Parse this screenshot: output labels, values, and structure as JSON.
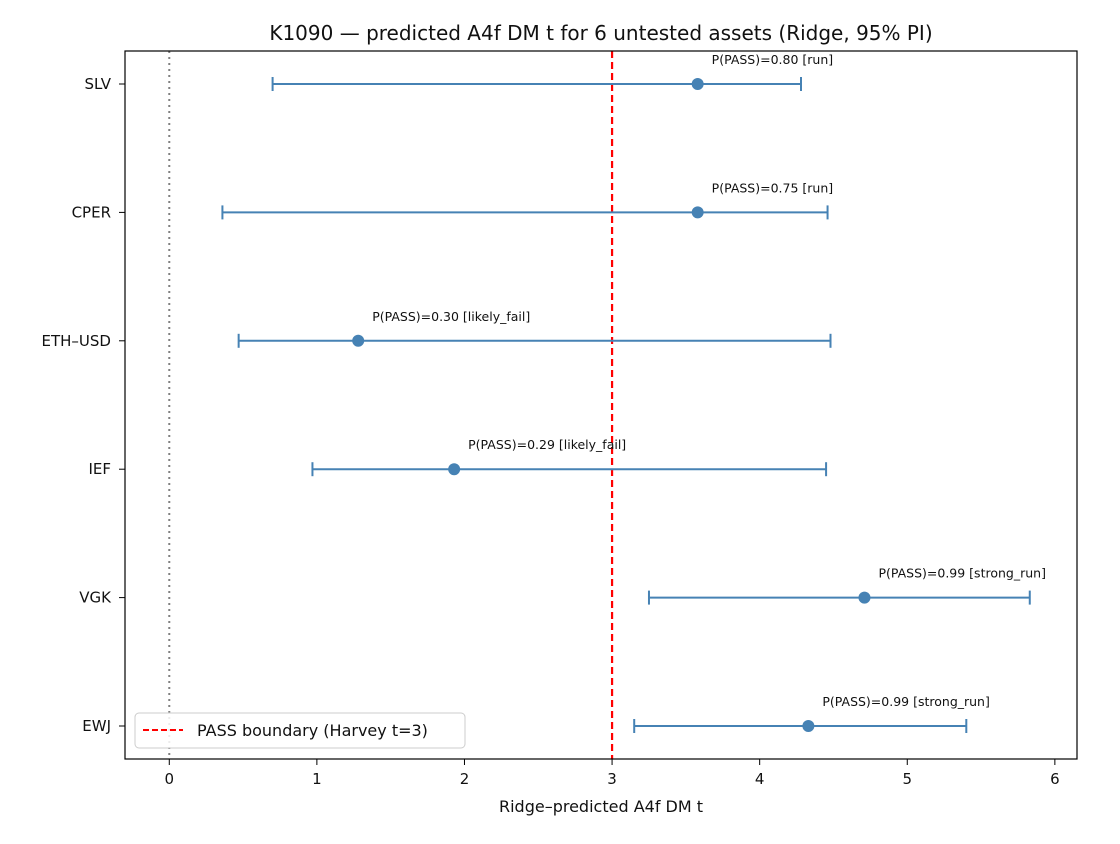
{
  "chart_data": {
    "type": "errorbar",
    "title": "K1090 — predicted A4f DM t for 6 untested assets (Ridge, 95% PI)",
    "xlabel": "Ridge–predicted A4f DM t",
    "ylabel": "",
    "xlim": [
      -0.3,
      6.15
    ],
    "xticks": [
      0,
      1,
      2,
      3,
      4,
      5,
      6
    ],
    "xtick_labels": [
      "0",
      "1",
      "2",
      "3",
      "4",
      "5",
      "6"
    ],
    "grid": false,
    "reference_lines": [
      {
        "x": 0,
        "style": "dotted",
        "color": "#808080"
      },
      {
        "x": 3,
        "style": "dashed",
        "color": "#ff0000",
        "label": "PASS boundary (Harvey t=3)"
      }
    ],
    "legend": {
      "position": "lower-left",
      "entries": [
        "PASS boundary (Harvey t=3)"
      ]
    },
    "point_color": "#4682b4",
    "assets": [
      {
        "name": "SLV",
        "estimate": 3.58,
        "lower": 0.7,
        "upper": 4.28,
        "annotation": "P(PASS)=0.80  [run]"
      },
      {
        "name": "CPER",
        "estimate": 3.58,
        "lower": 0.36,
        "upper": 4.46,
        "annotation": "P(PASS)=0.75  [run]"
      },
      {
        "name": "ETH–USD",
        "estimate": 1.28,
        "lower": 0.47,
        "upper": 4.48,
        "annotation": "P(PASS)=0.30  [likely_fail]"
      },
      {
        "name": "IEF",
        "estimate": 1.93,
        "lower": 0.97,
        "upper": 4.45,
        "annotation": "P(PASS)=0.29  [likely_fail]"
      },
      {
        "name": "VGK",
        "estimate": 4.71,
        "lower": 3.25,
        "upper": 5.83,
        "annotation": "P(PASS)=0.99  [strong_run]"
      },
      {
        "name": "EWJ",
        "estimate": 4.33,
        "lower": 3.15,
        "upper": 5.4,
        "annotation": "P(PASS)=0.99  [strong_run]"
      }
    ]
  }
}
